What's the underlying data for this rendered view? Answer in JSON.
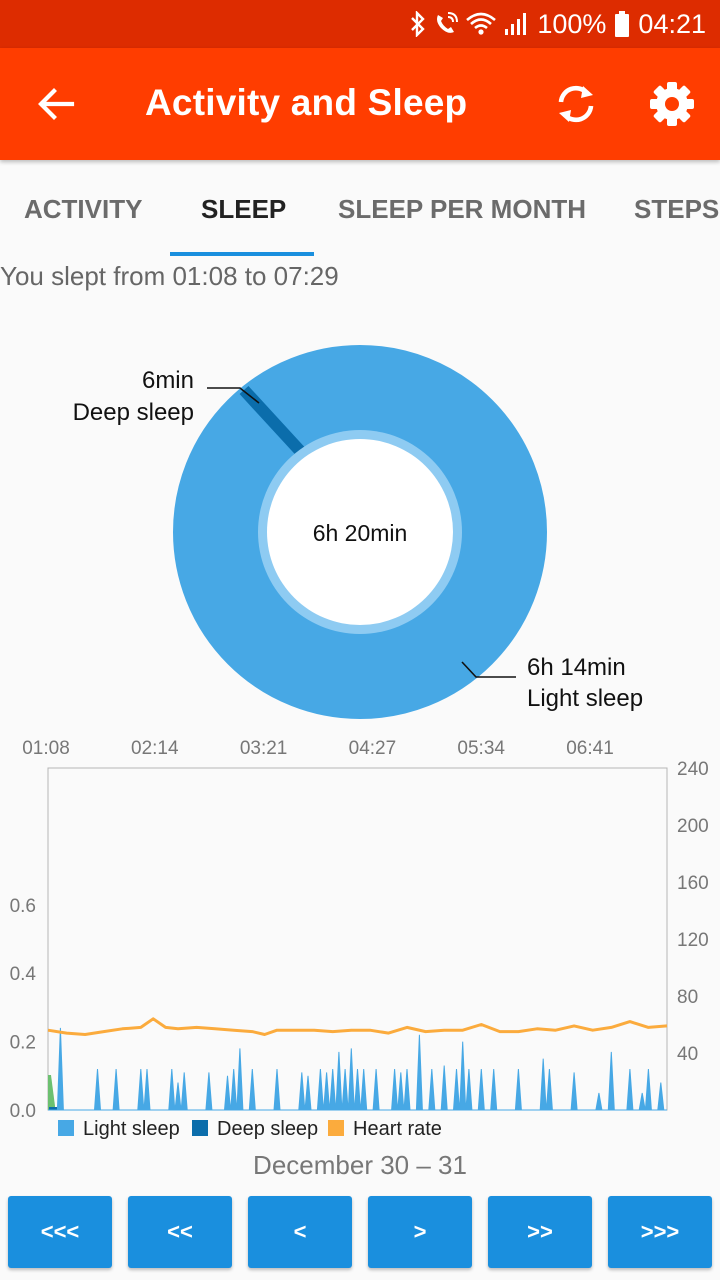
{
  "status_bar": {
    "battery": "100%",
    "time": "04:21"
  },
  "app_bar": {
    "title": "Activity and Sleep",
    "back_icon": "arrow-back-icon",
    "sync_icon": "sync-icon",
    "settings_icon": "gear-icon"
  },
  "tabs": [
    "ACTIVITY",
    "SLEEP",
    "SLEEP PER MONTH",
    "STEPS"
  ],
  "active_tab": "SLEEP",
  "summary": "You slept from 01:08 to 07:29",
  "donut": {
    "total": "6h 20min",
    "deep": {
      "value": "6min",
      "label": "Deep sleep",
      "minutes": 6
    },
    "light": {
      "value": "6h 14min",
      "label": "Light sleep",
      "minutes": 374
    }
  },
  "colors": {
    "light_sleep": "#47a8e5",
    "deep_sleep": "#0b6dab",
    "heart_rate": "#fbab3d",
    "awake": "#6cc070",
    "accent": "#ff3d00"
  },
  "chart_data": {
    "type": "area",
    "x_ticks": [
      "01:08",
      "02:14",
      "03:21",
      "04:27",
      "05:34",
      "06:41"
    ],
    "y_left_ticks": [
      "0.0",
      "0.2",
      "0.4",
      "0.6"
    ],
    "y_right_ticks": [
      "40",
      "80",
      "120",
      "160",
      "200",
      "240"
    ],
    "y_left_range": [
      0,
      1.0
    ],
    "y_right_range": [
      0,
      240
    ],
    "legend": [
      {
        "label": "Light sleep",
        "color": "#47a8e5"
      },
      {
        "label": "Deep sleep",
        "color": "#0b6dab"
      },
      {
        "label": "Heart rate",
        "color": "#fbab3d"
      }
    ],
    "light_sleep_peaks": [
      {
        "x": 0.02,
        "y": 0.24
      },
      {
        "x": 0.08,
        "y": 0.12
      },
      {
        "x": 0.11,
        "y": 0.12
      },
      {
        "x": 0.15,
        "y": 0.12
      },
      {
        "x": 0.16,
        "y": 0.12
      },
      {
        "x": 0.2,
        "y": 0.12
      },
      {
        "x": 0.22,
        "y": 0.11
      },
      {
        "x": 0.2,
        "y": 0.11
      },
      {
        "x": 0.22,
        "y": 0.07
      },
      {
        "x": 0.21,
        "y": 0.08
      },
      {
        "x": 0.26,
        "y": 0.11
      },
      {
        "x": 0.29,
        "y": 0.1
      },
      {
        "x": 0.3,
        "y": 0.12
      },
      {
        "x": 0.31,
        "y": 0.18
      },
      {
        "x": 0.33,
        "y": 0.12
      },
      {
        "x": 0.37,
        "y": 0.12
      },
      {
        "x": 0.42,
        "y": 0.1
      },
      {
        "x": 0.41,
        "y": 0.11
      },
      {
        "x": 0.44,
        "y": 0.12
      },
      {
        "x": 0.45,
        "y": 0.11
      },
      {
        "x": 0.46,
        "y": 0.12
      },
      {
        "x": 0.47,
        "y": 0.17
      },
      {
        "x": 0.48,
        "y": 0.12
      },
      {
        "x": 0.49,
        "y": 0.18
      },
      {
        "x": 0.5,
        "y": 0.12
      },
      {
        "x": 0.51,
        "y": 0.12
      },
      {
        "x": 0.53,
        "y": 0.12
      },
      {
        "x": 0.56,
        "y": 0.12
      },
      {
        "x": 0.57,
        "y": 0.11
      },
      {
        "x": 0.58,
        "y": 0.12
      },
      {
        "x": 0.6,
        "y": 0.22
      },
      {
        "x": 0.62,
        "y": 0.12
      },
      {
        "x": 0.64,
        "y": 0.13
      },
      {
        "x": 0.66,
        "y": 0.12
      },
      {
        "x": 0.67,
        "y": 0.2
      },
      {
        "x": 0.68,
        "y": 0.12
      },
      {
        "x": 0.7,
        "y": 0.12
      },
      {
        "x": 0.72,
        "y": 0.12
      },
      {
        "x": 0.76,
        "y": 0.12
      },
      {
        "x": 0.8,
        "y": 0.15
      },
      {
        "x": 0.81,
        "y": 0.12
      },
      {
        "x": 0.85,
        "y": 0.11
      },
      {
        "x": 0.89,
        "y": 0.05
      },
      {
        "x": 0.91,
        "y": 0.17
      },
      {
        "x": 0.94,
        "y": 0.12
      },
      {
        "x": 0.96,
        "y": 0.05
      },
      {
        "x": 0.97,
        "y": 0.12
      },
      {
        "x": 0.99,
        "y": 0.08
      }
    ],
    "heart_rate": [
      {
        "x": 0.0,
        "y": 56
      },
      {
        "x": 0.03,
        "y": 54
      },
      {
        "x": 0.06,
        "y": 53
      },
      {
        "x": 0.09,
        "y": 55
      },
      {
        "x": 0.12,
        "y": 57
      },
      {
        "x": 0.15,
        "y": 58
      },
      {
        "x": 0.17,
        "y": 64
      },
      {
        "x": 0.19,
        "y": 58
      },
      {
        "x": 0.21,
        "y": 57
      },
      {
        "x": 0.24,
        "y": 58
      },
      {
        "x": 0.27,
        "y": 57
      },
      {
        "x": 0.3,
        "y": 56
      },
      {
        "x": 0.33,
        "y": 55
      },
      {
        "x": 0.35,
        "y": 53
      },
      {
        "x": 0.37,
        "y": 56
      },
      {
        "x": 0.4,
        "y": 56
      },
      {
        "x": 0.43,
        "y": 56
      },
      {
        "x": 0.46,
        "y": 55
      },
      {
        "x": 0.49,
        "y": 56
      },
      {
        "x": 0.52,
        "y": 56
      },
      {
        "x": 0.55,
        "y": 54
      },
      {
        "x": 0.58,
        "y": 58
      },
      {
        "x": 0.61,
        "y": 55
      },
      {
        "x": 0.64,
        "y": 56
      },
      {
        "x": 0.67,
        "y": 56
      },
      {
        "x": 0.7,
        "y": 60
      },
      {
        "x": 0.73,
        "y": 55
      },
      {
        "x": 0.76,
        "y": 55
      },
      {
        "x": 0.79,
        "y": 57
      },
      {
        "x": 0.82,
        "y": 56
      },
      {
        "x": 0.85,
        "y": 59
      },
      {
        "x": 0.88,
        "y": 56
      },
      {
        "x": 0.91,
        "y": 58
      },
      {
        "x": 0.94,
        "y": 62
      },
      {
        "x": 0.97,
        "y": 58
      },
      {
        "x": 1.0,
        "y": 59
      }
    ]
  },
  "date_range": "December 30 – 31",
  "nav_buttons": [
    "<<<",
    "<<",
    "<",
    ">",
    ">>",
    ">>>"
  ]
}
